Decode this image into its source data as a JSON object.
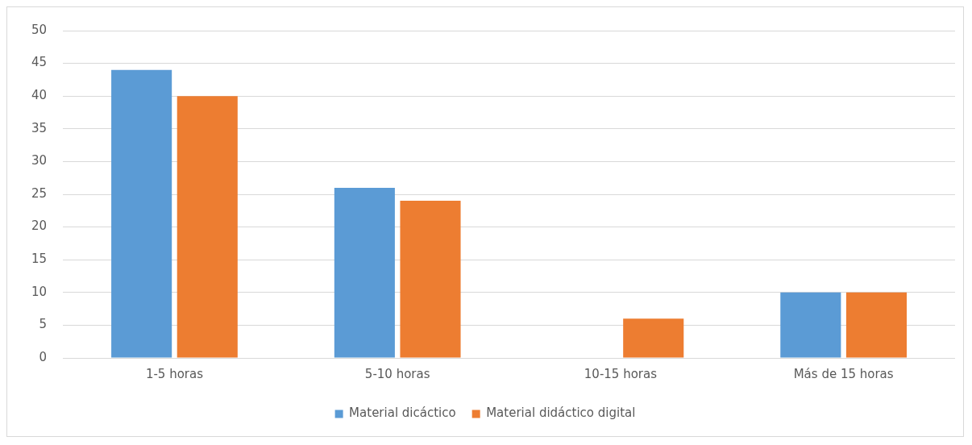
{
  "chart_data": {
    "type": "bar",
    "categories": [
      "1-5 horas",
      "5-10 horas",
      "10-15 horas",
      "Más de 15 horas"
    ],
    "series": [
      {
        "name": "Material dicáctico",
        "color": "#5b9bd5",
        "values": [
          44,
          26,
          0,
          10
        ]
      },
      {
        "name": "Material didáctico digital",
        "color": "#ed7d31",
        "values": [
          40,
          24,
          6,
          10
        ]
      }
    ],
    "ylim": [
      0,
      50
    ],
    "yticks": [
      0,
      5,
      10,
      15,
      20,
      25,
      30,
      35,
      40,
      45,
      50
    ],
    "grid": "y",
    "legend": "bottom"
  }
}
